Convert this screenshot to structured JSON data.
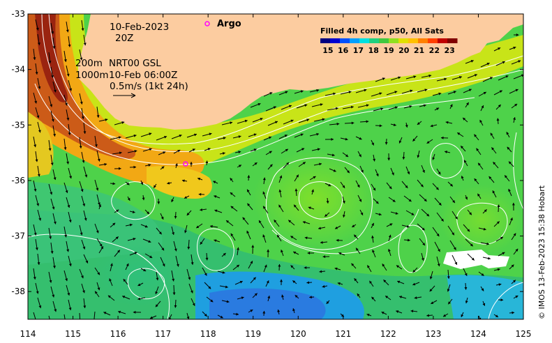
{
  "chart_data": {
    "type": "heatmap",
    "x_ticks": [
      114,
      115,
      116,
      117,
      118,
      119,
      120,
      121,
      122,
      123,
      124,
      125
    ],
    "y_ticks": [
      -33,
      -34,
      -35,
      -36,
      -37,
      -38
    ],
    "xlim": [
      114,
      125
    ],
    "ylim": [
      -38.5,
      -33
    ],
    "colorbar": {
      "title": "Filled 4h comp, p50, All Sats",
      "ticks": [
        15,
        16,
        17,
        18,
        19,
        20,
        21,
        22,
        23
      ],
      "range": [
        14.5,
        23.5
      ],
      "position": "top-right"
    },
    "annotations": {
      "date": "10-Feb-2023",
      "time": "20Z",
      "depth_200": "200m",
      "product": "NRT00 GSL",
      "depth_1000": "1000m",
      "valid": "10-Feb 06:00Z",
      "scale": "0.5m/s (1kt 24h)"
    },
    "argo": {
      "legend_label": "Argo",
      "floats": [
        {
          "lon": 117.5,
          "lat": -35.7
        }
      ]
    },
    "credit": "© IMOS 13-Feb-2023 15:38 Hobart",
    "colors": {
      "land": "#fccca0",
      "argo": "#ff00ff",
      "contour": "#ffffff",
      "arrow": "#000000"
    }
  }
}
